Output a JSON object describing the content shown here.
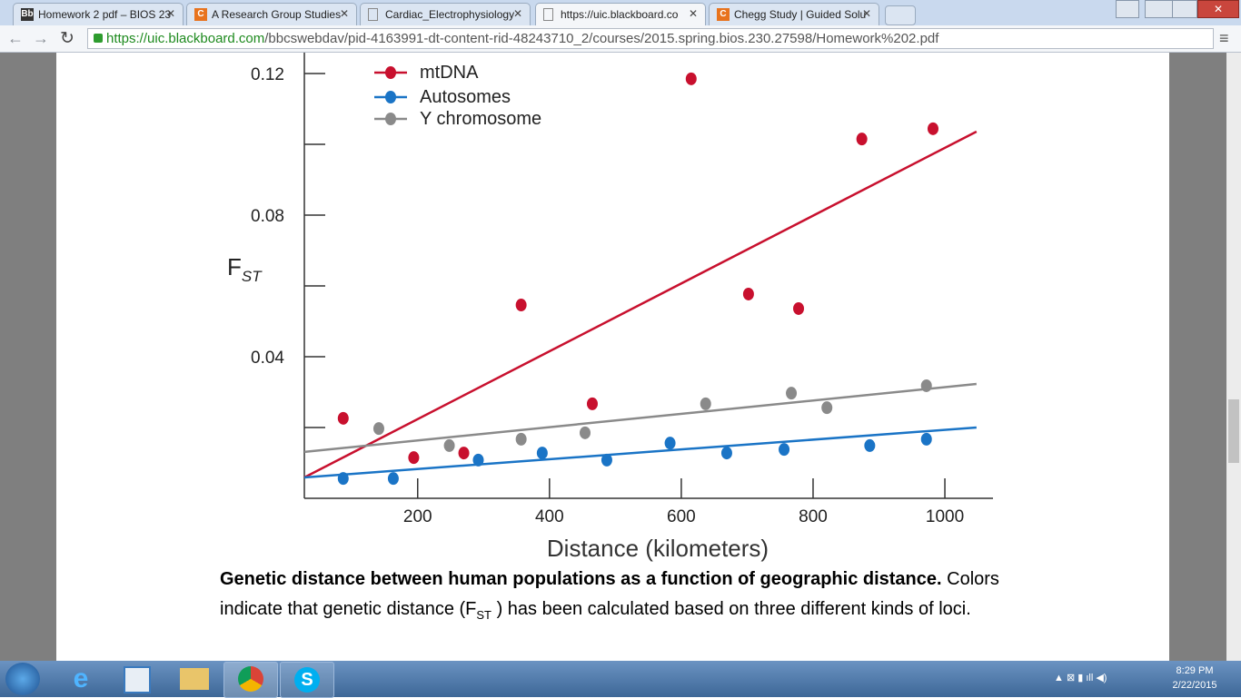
{
  "browser": {
    "tabs": [
      "Homework 2 pdf – BIOS 23",
      "A Research Group Studies",
      "Cardiac_Electrophysiology",
      "https://uic.blackboard.co",
      "Chegg Study | Guided Solu"
    ],
    "url_host": "https://uic.blackboard.com",
    "url_path": "/bbcswebdav/pid-4163991-dt-content-rid-48243710_2/courses/2015.spring.bios.230.27598/Homework%202.pdf"
  },
  "chart_data": {
    "type": "scatter",
    "x_label": "Distance (kilometers)",
    "y_label": "F",
    "y_label_sub": "ST",
    "xlim": [
      28,
      1073
    ],
    "ylim": [
      0,
      0.125
    ],
    "xticks": [
      200,
      400,
      600,
      800,
      1000
    ],
    "yticks": [
      0.04,
      0.08,
      0.12
    ],
    "yminor_ticks": [
      0.02,
      0.06,
      0.1
    ],
    "legend": "upper left",
    "series": [
      {
        "name": "mtDNA",
        "color": "#c8102e",
        "x": [
          87,
          194,
          270,
          357,
          465,
          615,
          702,
          778,
          874,
          982
        ],
        "values": [
          0.0226,
          0.0115,
          0.0128,
          0.0546,
          0.0267,
          0.1185,
          0.0577,
          0.0536,
          0.1015,
          0.1044
        ],
        "trendline": {
          "x": [
            28,
            1048
          ],
          "y": [
            0.0059,
            0.1036
          ]
        }
      },
      {
        "name": "Autosomes",
        "color": "#1a74c6",
        "x": [
          87,
          163,
          292,
          389,
          487,
          583,
          669,
          756,
          886,
          972
        ],
        "values": [
          0.0056,
          0.0056,
          0.0108,
          0.0128,
          0.0108,
          0.0156,
          0.0128,
          0.0138,
          0.0149,
          0.0167
        ],
        "trendline": {
          "x": [
            28,
            1048
          ],
          "y": [
            0.0059,
            0.02
          ]
        }
      },
      {
        "name": "Y chromosome",
        "color": "#8a8a8a",
        "x": [
          141,
          248,
          357,
          454,
          637,
          767,
          821,
          972
        ],
        "values": [
          0.0197,
          0.0149,
          0.0167,
          0.0185,
          0.0267,
          0.0297,
          0.0256,
          0.0318
        ],
        "trendline": {
          "x": [
            28,
            1048
          ],
          "y": [
            0.0131,
            0.0323
          ]
        }
      }
    ]
  },
  "caption": {
    "bold": "Genetic distance between human populations as a function of geographic distance.",
    "text": " Colors indicate that genetic distance (F",
    "sub": "ST",
    "text_end": " ) has been calculated based on three different kinds of loci."
  },
  "taskbar": {
    "time": "8:29 PM",
    "date": "2/22/2015"
  }
}
